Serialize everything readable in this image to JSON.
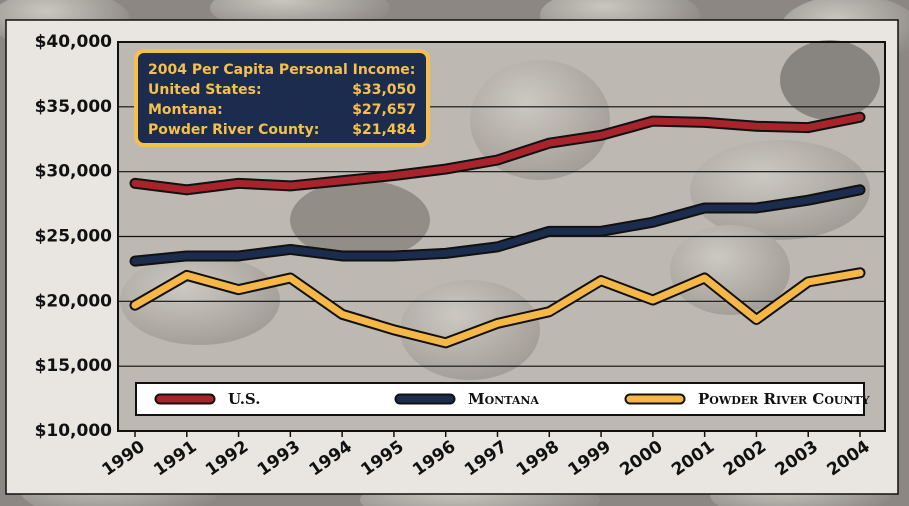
{
  "chart_data": {
    "type": "line",
    "categories": [
      "1990",
      "1991",
      "1992",
      "1993",
      "1994",
      "1995",
      "1996",
      "1997",
      "1998",
      "1999",
      "2000",
      "2001",
      "2002",
      "2003",
      "2004"
    ],
    "series": [
      {
        "name": "U.S.",
        "color": "#a8232b",
        "values": [
          29100,
          28600,
          29100,
          28900,
          29300,
          29700,
          30200,
          30900,
          32200,
          32800,
          33900,
          33800,
          33500,
          33400,
          34200
        ]
      },
      {
        "name": "Montana",
        "color": "#1b2c4e",
        "values": [
          23100,
          23500,
          23500,
          24000,
          23500,
          23500,
          23700,
          24200,
          25400,
          25400,
          26100,
          27200,
          27200,
          27800,
          28600
        ]
      },
      {
        "name": "Powder River County",
        "color": "#f5b746",
        "values": [
          19700,
          22000,
          20900,
          21800,
          19000,
          17800,
          16800,
          18300,
          19200,
          21600,
          20100,
          21800,
          18600,
          21500,
          22200
        ]
      }
    ],
    "ylim": [
      10000,
      40000
    ],
    "yticks": [
      {
        "value": 10000,
        "label": "$10,000"
      },
      {
        "value": 15000,
        "label": "$15,000"
      },
      {
        "value": 20000,
        "label": "$20,000"
      },
      {
        "value": 25000,
        "label": "$25,000"
      },
      {
        "value": 30000,
        "label": "$30,000"
      },
      {
        "value": 35000,
        "label": "$35,000"
      },
      {
        "value": 40000,
        "label": "$40,000"
      }
    ],
    "grid": true,
    "legend": "bottom",
    "annotation": {
      "title": "2004 Per Capita Personal Income:",
      "rows": [
        [
          "United States:",
          "$33,050"
        ],
        [
          "Montana:",
          "$27,657"
        ],
        [
          "Powder River County:",
          "$21,484"
        ]
      ]
    }
  }
}
